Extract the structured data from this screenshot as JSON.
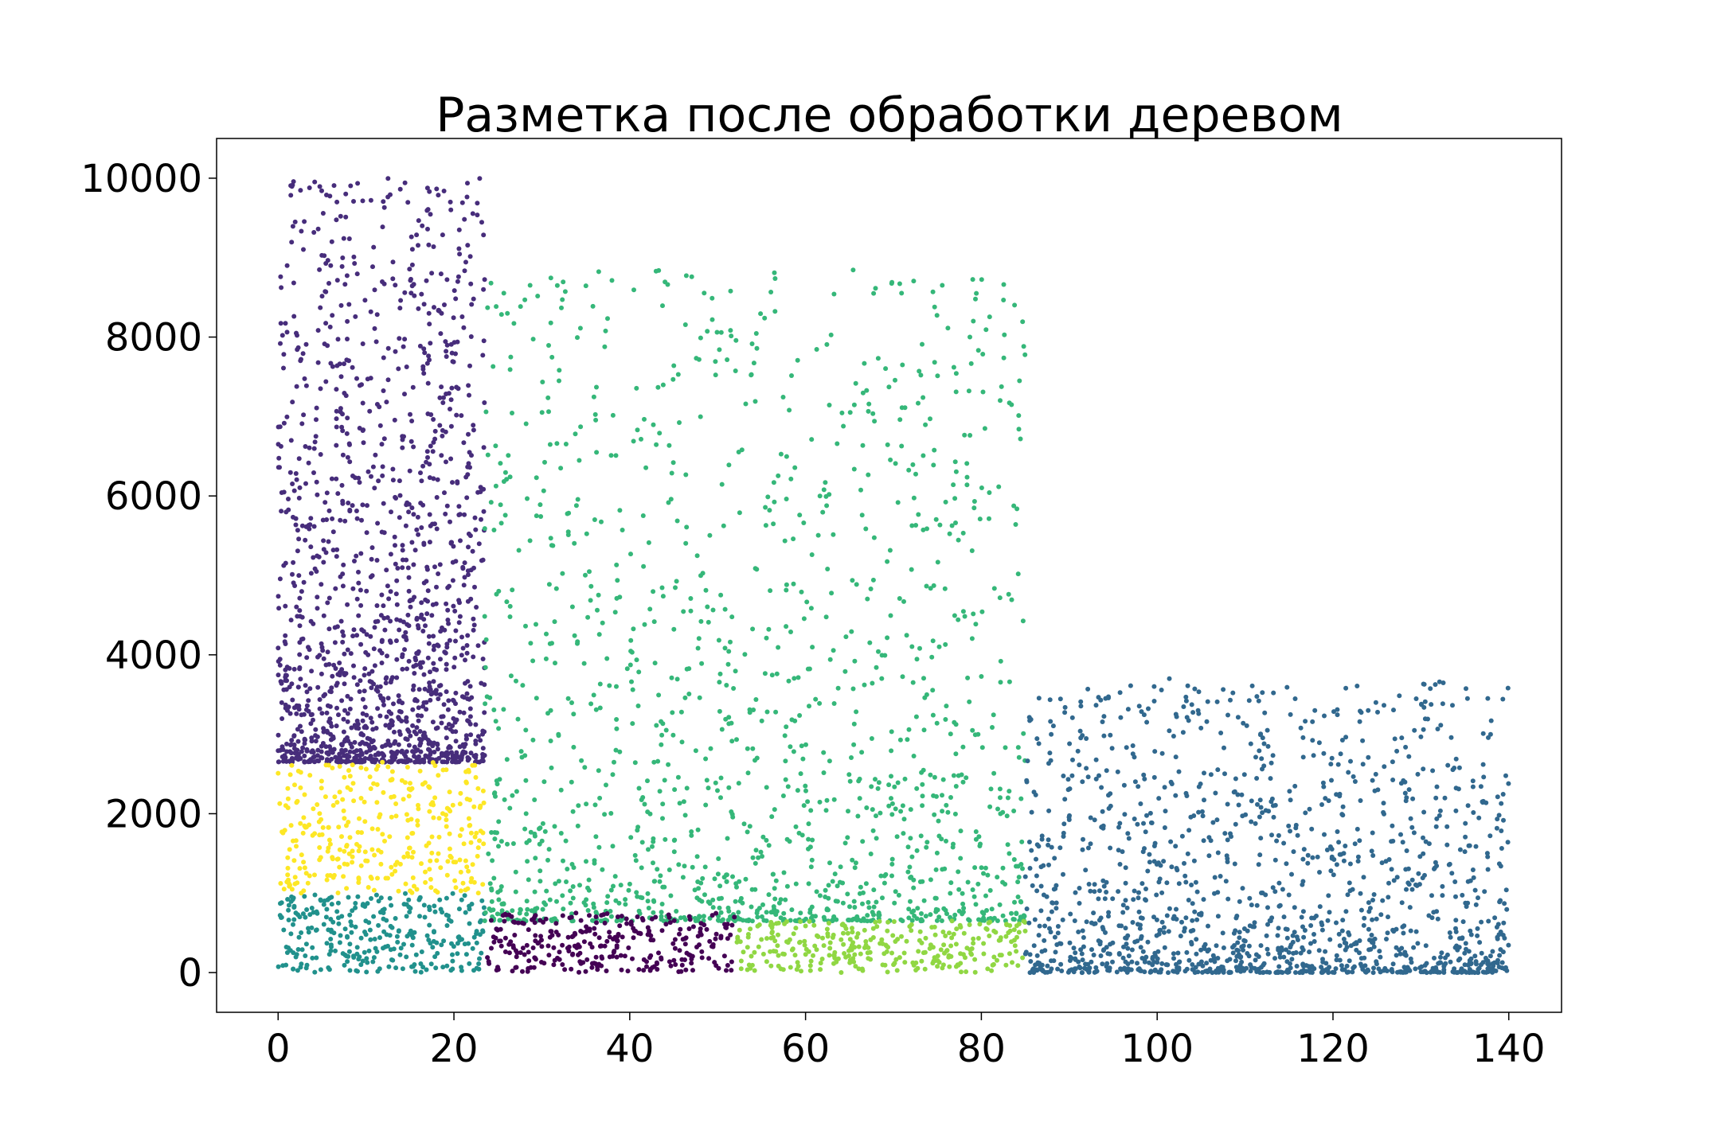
{
  "chart_data": {
    "type": "scatter",
    "title": "Разметка после обработки деревом",
    "xlabel": "",
    "ylabel": "",
    "xlim": [
      -7,
      146
    ],
    "ylim": [
      -500,
      10500
    ],
    "xticks": [
      0,
      20,
      40,
      60,
      80,
      100,
      120,
      140
    ],
    "yticks": [
      0,
      2000,
      4000,
      6000,
      8000,
      10000
    ],
    "grid": false,
    "legend": "none",
    "series": [
      {
        "color": "#472d7b",
        "region": {
          "x": [
            0,
            23.5
          ],
          "y": [
            2650,
            10000
          ]
        }
      },
      {
        "color": "#fde725",
        "region": {
          "x": [
            0,
            23.5
          ],
          "y": [
            1000,
            2650
          ]
        }
      },
      {
        "color": "#21918c",
        "region": {
          "x": [
            0,
            23.5
          ],
          "y": [
            0,
            1000
          ]
        }
      },
      {
        "color": "#35b779",
        "region": {
          "x": [
            23.5,
            85
          ],
          "y": [
            650,
            8850
          ]
        }
      },
      {
        "color": "#440154",
        "region": {
          "x": [
            23.5,
            52
          ],
          "y": [
            0,
            750
          ]
        }
      },
      {
        "color": "#90d743",
        "region": {
          "x": [
            52,
            85
          ],
          "y": [
            0,
            650
          ]
        }
      },
      {
        "color": "#31688e",
        "region": {
          "x": [
            85,
            140
          ],
          "y": [
            0,
            3700
          ]
        }
      }
    ]
  }
}
